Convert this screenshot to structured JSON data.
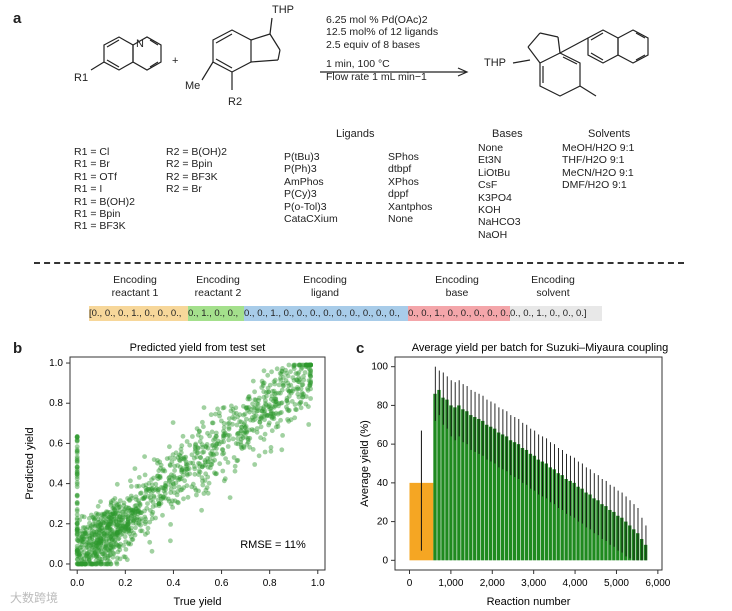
{
  "panel_a": {
    "label": "a",
    "reactant1_substituent": "R1",
    "reactant2_protecting_group": "THP",
    "reactant2_methyl": "Me",
    "reactant2_substituent": "R2",
    "plus": "+",
    "product_protecting_group": "THP",
    "conditions": [
      "6.25 mol % Pd(OAc)2",
      "12.5 mol% of 12 ligands",
      "2.5 equiv of 8 bases",
      "1 min, 100 °C",
      "Flow rate 1 mL min−1"
    ],
    "r1_options": [
      "R1 = Cl",
      "R1 = Br",
      "R1 = OTf",
      "R1 = I",
      "R1 = B(OH)2",
      "R1 = Bpin",
      "R1 = BF3K"
    ],
    "r2_options": [
      "R2 = B(OH)2",
      "R2 = Bpin",
      "R2 = BF3K",
      "R2 = Br"
    ],
    "ligands_title": "Ligands",
    "ligands_col1": [
      "P(tBu)3",
      "P(Ph)3",
      "AmPhos",
      "P(Cy)3",
      "P(o-Tol)3",
      "CataCXium"
    ],
    "ligands_col2": [
      "SPhos",
      "dtbpf",
      "XPhos",
      "dppf",
      "Xantphos",
      "None"
    ],
    "bases_title": "Bases",
    "bases": [
      "None",
      "Et3N",
      "LiOtBu",
      "CsF",
      "K3PO4",
      "KOH",
      "NaHCO3",
      "NaOH"
    ],
    "solvents_title": "Solvents",
    "solvents": [
      "MeOH/H2O 9:1",
      "THF/H2O 9:1",
      "MeCN/H2O 9:1",
      "DMF/H2O 9:1"
    ],
    "encoding_labels": [
      [
        "Encoding",
        "reactant 1"
      ],
      [
        "Encoding",
        "reactant 2"
      ],
      [
        "Encoding",
        "ligand"
      ],
      [
        "Encoding",
        "base"
      ],
      [
        "Encoding",
        "solvent"
      ]
    ],
    "encoding_segments": [
      {
        "text": "[0., 0., 0., 1., 0., 0., 0.,",
        "color": "#f7d79a"
      },
      {
        "text": "0., 1., 0., 0.,",
        "color": "#a4e08c"
      },
      {
        "text": "0., 0., 1., 0., 0., 0., 0., 0., 0., 0., 0., 0.,",
        "color": "#a8cce9"
      },
      {
        "text": "0., 0., 1., 0., 0., 0., 0., 0.,",
        "color": "#f4a6aa"
      },
      {
        "text": "0., 0., 1., 0., 0., 0.]",
        "color": "#e8e8e8"
      }
    ]
  },
  "panel_b": {
    "label": "b",
    "rmse_label": "RMSE = 11%"
  },
  "panel_c": {
    "label": "c"
  },
  "watermark": "大数跨境",
  "chart_data": [
    {
      "type": "scatter",
      "title": "Predicted yield from test set",
      "xlabel": "True yield",
      "ylabel": "Predicted yield",
      "xlim": [
        -0.03,
        1.03
      ],
      "ylim": [
        -0.03,
        1.03
      ],
      "xticks": [
        "0.0",
        "0.2",
        "0.4",
        "0.6",
        "0.8",
        "1.0"
      ],
      "yticks": [
        "0.0",
        "0.2",
        "0.4",
        "0.6",
        "0.8",
        "1.0"
      ],
      "color": "#2e9a2e",
      "n_points": 1300,
      "trend": "y ≈ x with scatter (RMSE 0.11); dense cluster near (0.1, 0.15); points at x=0 spread from 0 to 0.65",
      "annotation": "RMSE = 11%"
    },
    {
      "type": "bar",
      "title": "Average yield per batch for Suzuki–Miyaura coupling",
      "xlabel": "Reaction number",
      "ylabel": "Average yield (%)",
      "xlim": [
        -350,
        6100
      ],
      "ylim": [
        -5,
        105
      ],
      "xticks": [
        "0",
        "1,000",
        "2,000",
        "3,000",
        "4,000",
        "5,000",
        "6,000"
      ],
      "yticks": [
        "0",
        "20",
        "40",
        "60",
        "80",
        "100"
      ],
      "first_batch": {
        "x_start": 0,
        "x_end": 576,
        "mean": 40,
        "err_low": 5,
        "err_high": 67,
        "color": "#f5a623"
      },
      "batches": {
        "x_start": 576,
        "width": 96,
        "count": 54,
        "color": "#1f8a1f"
      },
      "values": [
        86,
        88,
        84,
        83,
        80,
        79,
        80,
        78,
        77,
        75,
        74,
        73,
        72,
        70,
        69,
        68,
        66,
        65,
        64,
        62,
        61,
        60,
        58,
        57,
        55,
        54,
        52,
        51,
        50,
        48,
        47,
        45,
        44,
        42,
        41,
        40,
        38,
        37,
        35,
        34,
        32,
        31,
        29,
        28,
        26,
        25,
        23,
        22,
        20,
        18,
        16,
        14,
        11,
        8
      ],
      "err_high": [
        100,
        98,
        97,
        95,
        93,
        92,
        93,
        91,
        90,
        88,
        87,
        86,
        85,
        83,
        82,
        81,
        79,
        78,
        77,
        75,
        74,
        73,
        71,
        70,
        68,
        67,
        65,
        64,
        63,
        61,
        60,
        58,
        57,
        55,
        54,
        53,
        51,
        50,
        48,
        47,
        45,
        44,
        42,
        41,
        39,
        38,
        36,
        35,
        33,
        31,
        29,
        27,
        22,
        18
      ],
      "err_low": [
        72,
        75,
        70,
        68,
        64,
        62,
        64,
        61,
        60,
        57,
        56,
        55,
        54,
        52,
        51,
        50,
        48,
        47,
        46,
        44,
        43,
        42,
        40,
        39,
        37,
        36,
        34,
        33,
        32,
        30,
        29,
        27,
        26,
        24,
        23,
        22,
        20,
        19,
        17,
        16,
        14,
        13,
        11,
        10,
        8,
        7,
        5,
        4,
        2,
        1,
        0,
        0,
        0,
        0
      ]
    }
  ]
}
